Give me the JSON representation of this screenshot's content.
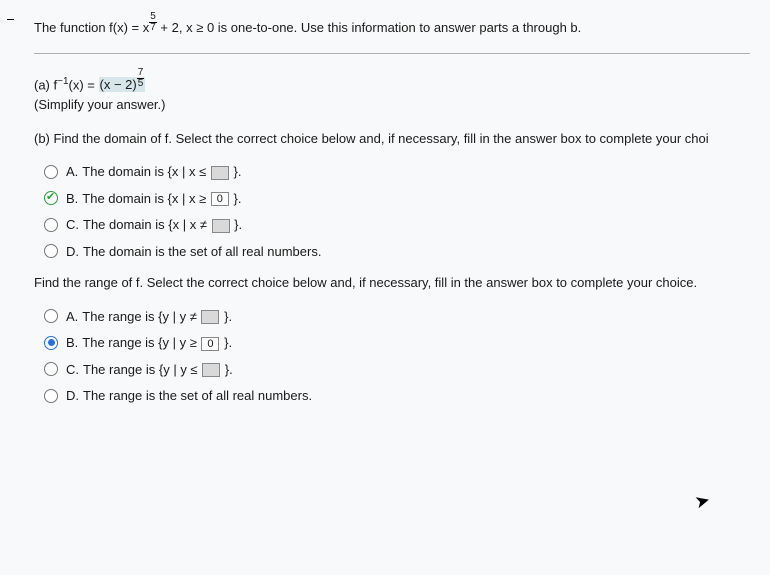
{
  "problem": {
    "prefix": "The function f(x) = x",
    "exp_num": "5",
    "exp_den": "7",
    "suffix": " + 2, x ≥ 0 is one-to-one. Use this information to answer parts a through b."
  },
  "partA": {
    "label": "(a) f",
    "exponent": "−1",
    "mid": "(x) = ",
    "ans_base": "(x − 2)",
    "ans_exp_num": "7",
    "ans_exp_den": "5",
    "hint": "(Simplify your answer.)"
  },
  "partB": {
    "prompt": "(b) Find the domain of f. Select the correct choice below and, if necessary, fill in the answer box to complete your choi",
    "options": [
      {
        "letter": "A.",
        "pre": "The domain is {x | x ≤ ",
        "boxed": "",
        "post": " }.",
        "selected": false,
        "correct": false
      },
      {
        "letter": "B.",
        "pre": "The domain is {x | x ≥ ",
        "boxed": "0",
        "post": " }.",
        "selected": true,
        "correct": true
      },
      {
        "letter": "C.",
        "pre": "The domain is {x | x ≠ ",
        "boxed": "",
        "post": " }.",
        "selected": false,
        "correct": false
      },
      {
        "letter": "D.",
        "pre": "The domain is the set of all real numbers.",
        "boxed": null,
        "post": "",
        "selected": false,
        "correct": false
      }
    ]
  },
  "rangeQ": {
    "prompt": "Find the range of f. Select the correct choice below and, if necessary, fill in the answer box to complete your choice.",
    "options": [
      {
        "letter": "A.",
        "pre": "The range is {y | y ≠ ",
        "boxed": "",
        "post": " }.",
        "selected": false
      },
      {
        "letter": "B.",
        "pre": "The range is {y | y ≥ ",
        "boxed": "0",
        "post": " }.",
        "selected": true
      },
      {
        "letter": "C.",
        "pre": "The range is {y | y ≤ ",
        "boxed": "",
        "post": " }.",
        "selected": false
      },
      {
        "letter": "D.",
        "pre": "The range is the set of all real numbers.",
        "boxed": null,
        "post": "",
        "selected": false
      }
    ]
  },
  "colors": {
    "bg": "#e8eaed",
    "sheet": "#f8f9fa",
    "text": "#1a1a1a",
    "highlight": "#d6e6ea",
    "rule": "#b0b0b0",
    "radio_blue": "#2a6fd6",
    "radio_green": "#2e9e3f",
    "fillbox": "#d9d9d9"
  }
}
